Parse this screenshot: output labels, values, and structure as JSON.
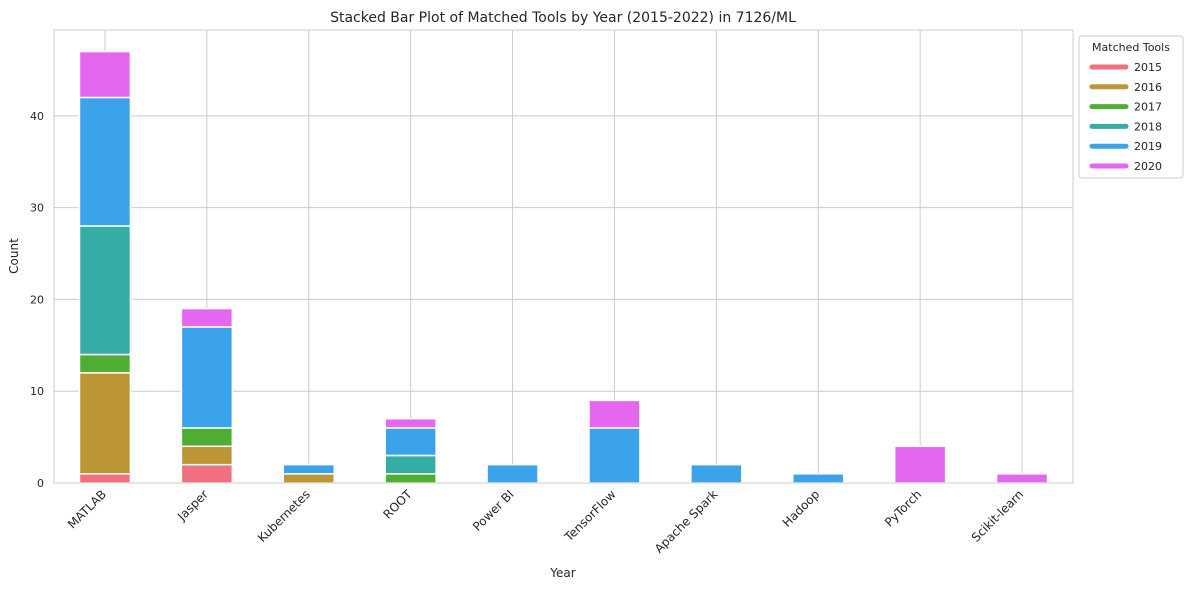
{
  "chart_data": {
    "type": "bar",
    "stacked": true,
    "title": "Stacked Bar Plot of Matched Tools by Year (2015-2022) in 7126/ML",
    "xlabel": "Year",
    "ylabel": "Count",
    "ylim": [
      0,
      49.35
    ],
    "yticks": [
      0,
      10,
      20,
      30,
      40
    ],
    "grid": true,
    "legend": {
      "title": "Matched Tools",
      "placement": "outside-top-right"
    },
    "categories": [
      "MATLAB",
      "Jasper",
      "Kubernetes",
      "ROOT",
      "Power BI",
      "TensorFlow",
      "Apache Spark",
      "Hadoop",
      "PyTorch",
      "Scikit-learn"
    ],
    "series": [
      {
        "name": "2015",
        "color": "#f0707f",
        "values": [
          1,
          2,
          0,
          0,
          0,
          0,
          0,
          0,
          0,
          0
        ]
      },
      {
        "name": "2016",
        "color": "#bb9632",
        "values": [
          11,
          2,
          1,
          0,
          0,
          0,
          0,
          0,
          0,
          0
        ]
      },
      {
        "name": "2017",
        "color": "#4eae33",
        "values": [
          2,
          2,
          0,
          1,
          0,
          0,
          0,
          0,
          0,
          0
        ]
      },
      {
        "name": "2018",
        "color": "#36ada4",
        "values": [
          14,
          0,
          0,
          2,
          0,
          0,
          0,
          0,
          0,
          0
        ]
      },
      {
        "name": "2019",
        "color": "#3ba3ec",
        "values": [
          14,
          11,
          1,
          3,
          2,
          6,
          2,
          1,
          0,
          0
        ]
      },
      {
        "name": "2020",
        "color": "#e567f0",
        "values": [
          5,
          2,
          0,
          1,
          0,
          3,
          0,
          0,
          4,
          1
        ]
      }
    ]
  }
}
